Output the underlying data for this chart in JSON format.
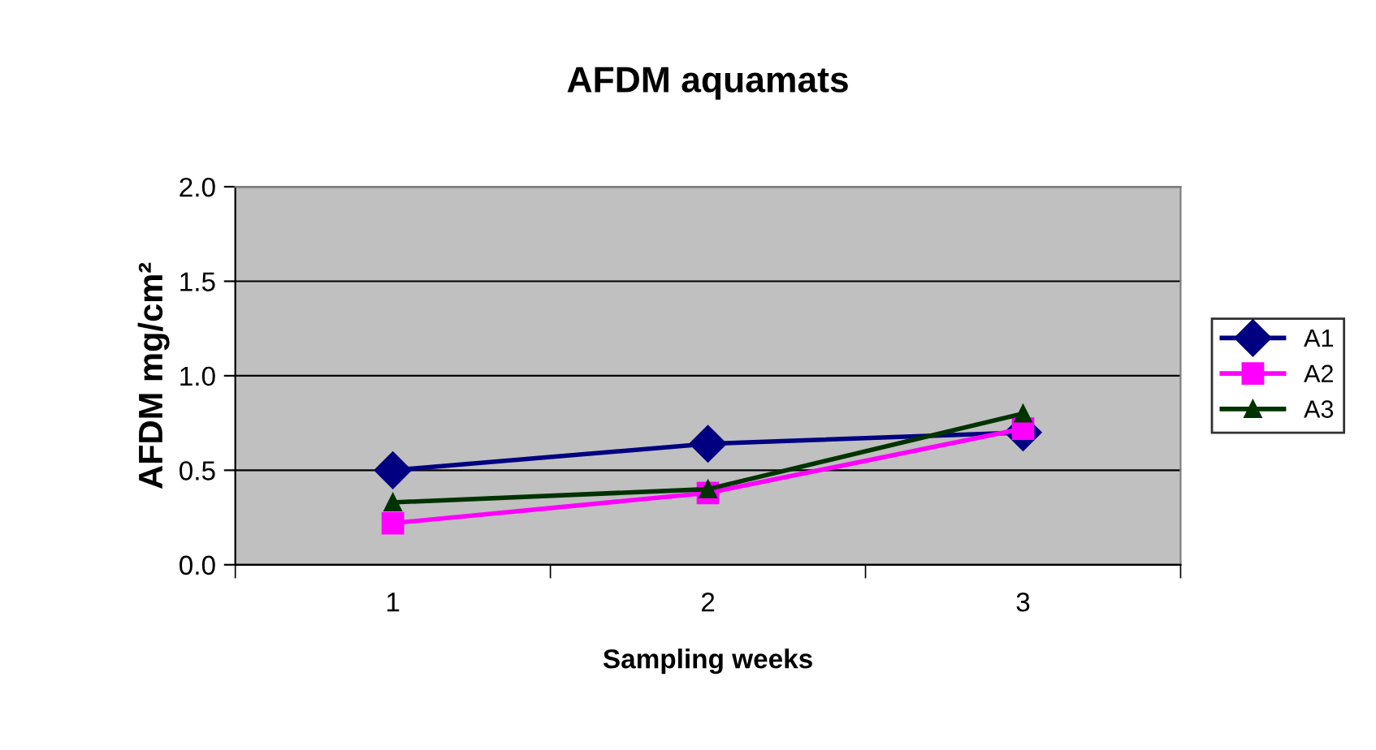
{
  "chart_data": {
    "type": "line",
    "title": "AFDM aquamats",
    "xlabel": "Sampling weeks",
    "ylabel": "AFDM mg/cm²",
    "categories": [
      "1",
      "2",
      "3"
    ],
    "series": [
      {
        "name": "A1",
        "color": "#000080",
        "marker": "diamond",
        "values": [
          0.5,
          0.64,
          0.7
        ]
      },
      {
        "name": "A2",
        "color": "#ff00ff",
        "marker": "square",
        "values": [
          0.22,
          0.38,
          0.72
        ]
      },
      {
        "name": "A3",
        "color": "#003300",
        "marker": "triangle",
        "values": [
          0.33,
          0.4,
          0.8
        ]
      }
    ],
    "ylim": [
      0,
      2
    ],
    "yticks": [
      {
        "value": 0,
        "label": "0.0"
      },
      {
        "value": 0.5,
        "label": "0.5"
      },
      {
        "value": 1,
        "label": "1.0"
      },
      {
        "value": 1.5,
        "label": "1.5"
      },
      {
        "value": 2,
        "label": "2.0"
      }
    ],
    "grid": "y",
    "legend": "right",
    "line_style": "solid"
  }
}
